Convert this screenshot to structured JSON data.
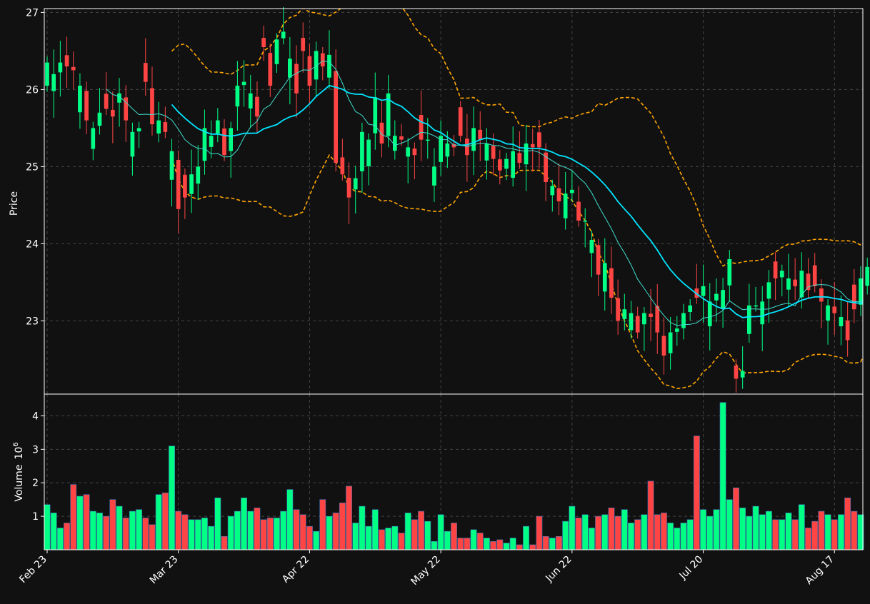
{
  "colors": {
    "background": "#111111",
    "up": "#00ff85",
    "down": "#ff4444",
    "ma_fast": "#40e0d0",
    "ma_slow": "#00e5ff",
    "band": "#ffa500",
    "grid": "#444444",
    "frame": "#ffffff"
  },
  "chart_data": {
    "type": "candlestick",
    "price_panel": {
      "ylabel": "Price",
      "ylim": [
        22.05,
        27.05
      ],
      "yticks": [
        "23",
        "24",
        "25",
        "26",
        "27"
      ],
      "grid": true
    },
    "volume_panel": {
      "ylabel": "Volume",
      "ylabel_exponent": "6",
      "ylabel_exponent_base": "10",
      "ylim": [
        0,
        4.65
      ],
      "yticks": [
        "1",
        "2",
        "3",
        "4"
      ],
      "unit": "millions",
      "grid": true
    },
    "x_axis": {
      "n_sessions": 125,
      "ticks": [
        {
          "index": 0,
          "label": "Feb 23"
        },
        {
          "index": 20,
          "label": "Mar 23"
        },
        {
          "index": 40,
          "label": "Apr 22"
        },
        {
          "index": 60,
          "label": "May 22"
        },
        {
          "index": 80,
          "label": "Jun 22"
        },
        {
          "index": 100,
          "label": "Jul 20"
        },
        {
          "index": 120,
          "label": "Aug 17"
        }
      ]
    },
    "closes": [
      26.35,
      26.2,
      26.35,
      26.3,
      26.25,
      26.05,
      25.6,
      25.5,
      25.7,
      25.75,
      25.65,
      25.95,
      25.6,
      25.45,
      25.5,
      26.1,
      25.55,
      25.6,
      25.45,
      25.2,
      24.45,
      24.6,
      24.9,
      25.0,
      25.5,
      25.4,
      25.6,
      25.15,
      25.5,
      26.05,
      26.1,
      25.95,
      25.65,
      26.55,
      26.05,
      26.65,
      26.75,
      26.4,
      25.95,
      26.5,
      26.05,
      26.5,
      26.3,
      26.45,
      25.05,
      24.9,
      24.6,
      24.85,
      25.45,
      25.35,
      25.9,
      25.3,
      25.95,
      25.4,
      25.35,
      25.25,
      25.15,
      25.35,
      25.35,
      25.0,
      25.4,
      25.3,
      25.25,
      25.4,
      25.15,
      25.5,
      25.35,
      25.3,
      25.1,
      24.95,
      25.1,
      25.2,
      25.05,
      25.3,
      25.25,
      25.25,
      24.8,
      24.75,
      24.55,
      24.65,
      24.7,
      24.3,
      24.3,
      24.05,
      23.6,
      23.75,
      23.3,
      23.0,
      23.15,
      23.1,
      22.85,
      23.1,
      23.05,
      22.85,
      22.55,
      22.85,
      22.9,
      23.1,
      23.2,
      23.3,
      23.45,
      23.25,
      23.35,
      23.4,
      23.8,
      22.25,
      22.35,
      23.2,
      23.2,
      23.25,
      23.5,
      23.55,
      23.65,
      23.55,
      23.45,
      23.65,
      23.4,
      23.45,
      23.25,
      23.2,
      23.1,
      23.05,
      22.75,
      23.15,
      23.55,
      23.7
    ],
    "volumes": [
      1.35,
      1.1,
      0.65,
      0.8,
      1.95,
      1.6,
      1.65,
      1.15,
      1.1,
      1.0,
      1.5,
      1.3,
      0.95,
      1.15,
      1.2,
      0.95,
      0.75,
      1.65,
      1.7,
      3.1,
      1.15,
      1.05,
      0.9,
      0.9,
      0.95,
      0.7,
      1.55,
      0.4,
      1.0,
      1.15,
      1.55,
      1.15,
      1.25,
      0.9,
      0.95,
      0.95,
      1.15,
      1.8,
      1.2,
      1.05,
      0.7,
      0.55,
      1.5,
      1.0,
      1.1,
      1.4,
      1.9,
      0.8,
      1.3,
      0.7,
      1.2,
      0.6,
      0.65,
      0.7,
      0.5,
      1.1,
      0.9,
      1.15,
      0.85,
      0.25,
      1.05,
      0.55,
      0.8,
      0.35,
      0.35,
      0.6,
      0.5,
      0.35,
      0.25,
      0.3,
      0.2,
      0.35,
      0.15,
      0.7,
      0.15,
      1.0,
      0.4,
      0.35,
      0.4,
      0.85,
      1.3,
      0.95,
      1.05,
      0.65,
      1.0,
      1.05,
      1.25,
      1.0,
      1.2,
      0.8,
      0.9,
      1.05,
      2.05,
      1.05,
      1.1,
      0.8,
      0.65,
      0.8,
      0.9,
      3.4,
      1.2,
      1.0,
      1.2,
      4.4,
      1.5,
      1.85,
      1.25,
      1.0,
      1.3,
      1.05,
      1.15,
      0.9,
      0.9,
      1.1,
      0.9,
      1.35,
      0.65,
      0.85,
      1.15,
      1.05,
      0.9,
      1.05,
      1.55,
      1.15,
      1.05
    ]
  }
}
